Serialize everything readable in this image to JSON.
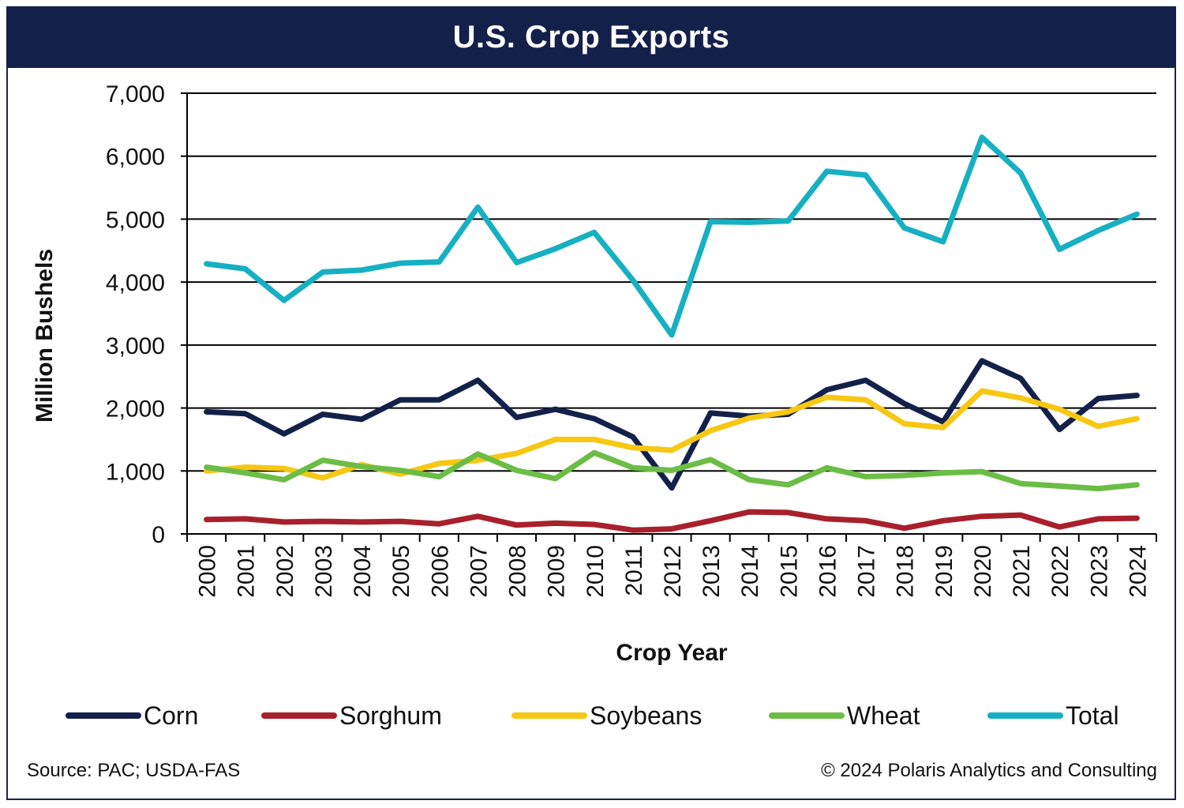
{
  "header": {
    "title": "U.S. Crop Exports"
  },
  "footer": {
    "source": "Source: PAC; USDA-FAS",
    "copyright": "© 2024 Polaris Analytics and Consulting"
  },
  "chart_data": {
    "type": "line",
    "title": "U.S. Crop Exports",
    "xlabel": "Crop Year",
    "ylabel": "Million Bushels",
    "ylim": [
      0,
      7000
    ],
    "yticks": [
      0,
      1000,
      2000,
      3000,
      4000,
      5000,
      6000,
      7000
    ],
    "ytick_labels": [
      "0",
      "1,000",
      "2,000",
      "3,000",
      "4,000",
      "5,000",
      "6,000",
      "7,000"
    ],
    "grid": true,
    "legend_position": "bottom",
    "categories": [
      "2000",
      "2001",
      "2002",
      "2003",
      "2004",
      "2005",
      "2006",
      "2007",
      "2008",
      "2009",
      "2010",
      "2011",
      "2012",
      "2013",
      "2014",
      "2015",
      "2016",
      "2017",
      "2018",
      "2019",
      "2020",
      "2021",
      "2022",
      "2023",
      "2024"
    ],
    "series": [
      {
        "name": "Corn",
        "color": "#13214a",
        "values": [
          1940,
          1910,
          1590,
          1900,
          1820,
          2130,
          2130,
          2440,
          1850,
          1980,
          1830,
          1540,
          730,
          1920,
          1870,
          1900,
          2290,
          2440,
          2070,
          1780,
          2750,
          2470,
          1660,
          2150,
          2200
        ]
      },
      {
        "name": "Sorghum",
        "color": "#a8202c",
        "values": [
          230,
          240,
          190,
          200,
          190,
          200,
          160,
          280,
          140,
          170,
          150,
          60,
          80,
          210,
          350,
          340,
          240,
          210,
          90,
          210,
          280,
          300,
          110,
          240,
          250
        ]
      },
      {
        "name": "Soybeans",
        "color": "#f7c713",
        "values": [
          1000,
          1060,
          1040,
          890,
          1100,
          950,
          1120,
          1170,
          1280,
          1500,
          1500,
          1370,
          1330,
          1640,
          1840,
          1940,
          2170,
          2130,
          1750,
          1690,
          2270,
          2160,
          1980,
          1710,
          1830
        ]
      },
      {
        "name": "Wheat",
        "color": "#6cbd45",
        "values": [
          1060,
          970,
          860,
          1170,
          1070,
          1010,
          910,
          1270,
          1010,
          880,
          1290,
          1050,
          1010,
          1180,
          860,
          780,
          1050,
          910,
          930,
          970,
          990,
          800,
          760,
          720,
          780
        ]
      },
      {
        "name": "Total",
        "color": "#16b0c2",
        "values": [
          4290,
          4210,
          3710,
          4160,
          4190,
          4300,
          4320,
          5190,
          4310,
          4530,
          4790,
          4030,
          3160,
          4960,
          4950,
          4970,
          5760,
          5700,
          4860,
          4640,
          6300,
          5730,
          4520,
          4820,
          5080
        ]
      }
    ]
  }
}
